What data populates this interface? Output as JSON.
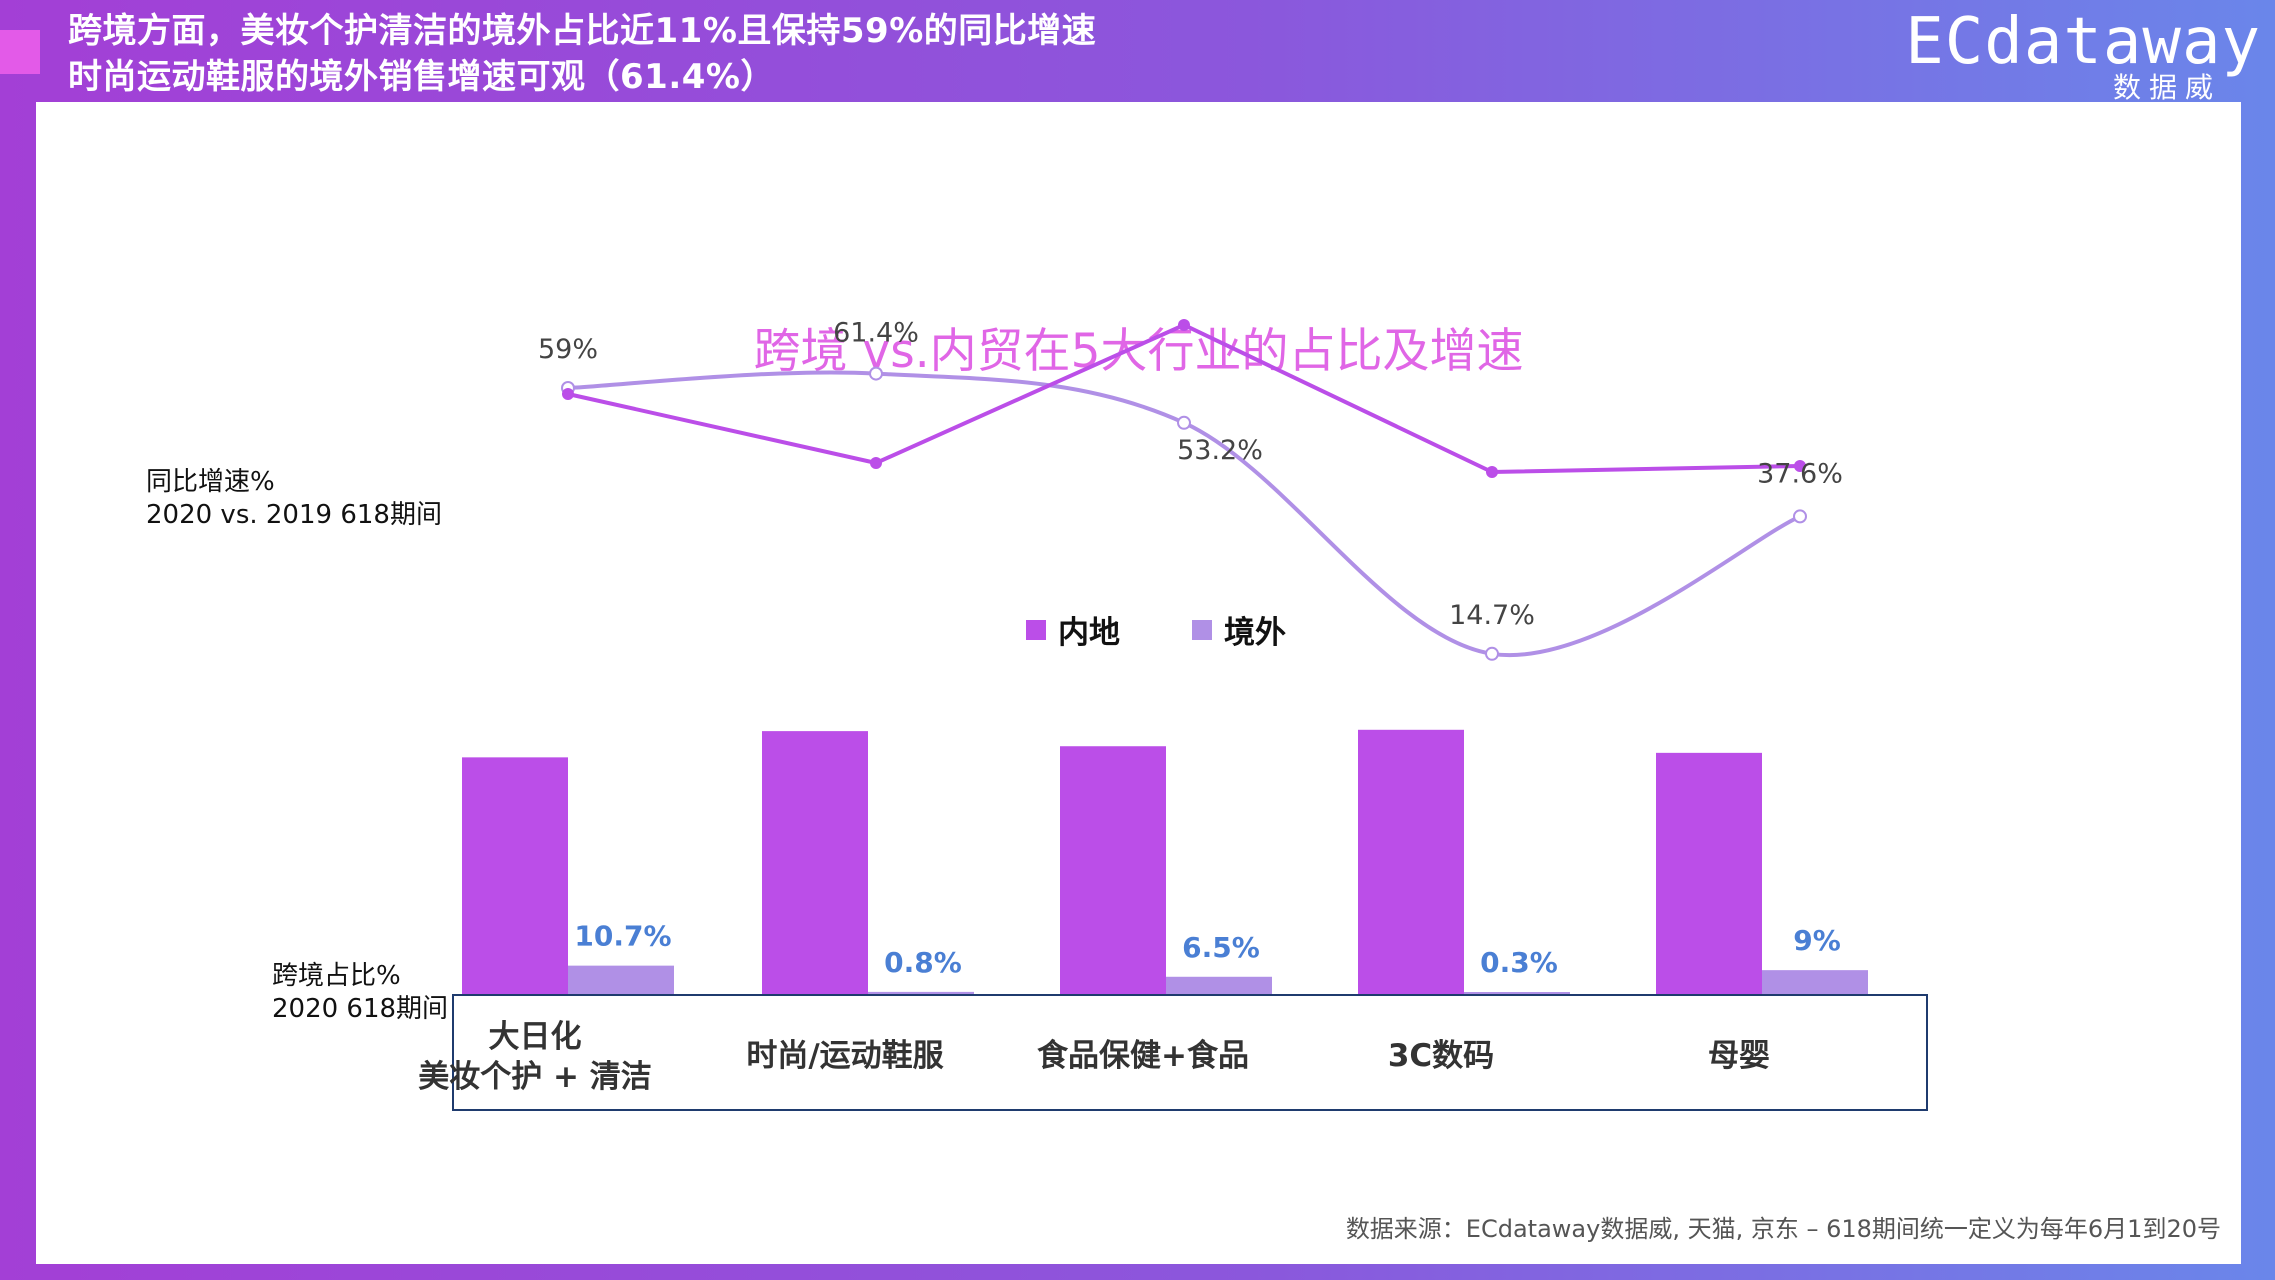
{
  "header": {
    "title_line1": "跨境方面，美妆个护清洁的境外占比近11%且保持59%的同比增速",
    "title_line2": "时尚运动鞋服的境外销售增速可观（61.4%）"
  },
  "logo": {
    "word": "ECdataway",
    "sub": "数据威"
  },
  "labels": {
    "growth_title": "同比增速%",
    "growth_sub": "2020 vs. 2019 618期间",
    "share_title": "跨境占比%",
    "share_sub": "2020 618期间"
  },
  "source": "数据来源：ECdataway数据威, 天猫, 京东 – 618期间统一定义为每年6月1到20号",
  "colors": {
    "domestic": "#bb4ee8",
    "overseas": "#b090e6",
    "label_blue": "#4a7fd4",
    "title_pink": "#e066e6"
  },
  "chart_data": {
    "type": "bar+line",
    "title": "跨境 vs.内贸在5大行业的占比及增速",
    "legend": [
      {
        "name": "内地"
      },
      {
        "name": "境外"
      }
    ],
    "categories": [
      {
        "line1": "大日化",
        "line2": "美妆个护 + 清洁"
      },
      {
        "line1": "时尚/运动鞋服",
        "line2": ""
      },
      {
        "line1": "食品保健+食品",
        "line2": ""
      },
      {
        "line1": "3C数码",
        "line2": ""
      },
      {
        "line1": "母婴",
        "line2": ""
      }
    ],
    "share_series": [
      {
        "name": "内地",
        "values": [
          89.3,
          99.2,
          93.5,
          99.7,
          91.0
        ]
      },
      {
        "name": "境外",
        "values": [
          10.7,
          0.8,
          6.5,
          0.3,
          9.0
        ]
      }
    ],
    "share_labels": [
      "10.7%",
      "0.8%",
      "6.5%",
      "0.3%",
      "9%"
    ],
    "growth_series": [
      {
        "name": "内地",
        "values": [
          58.0,
          46.5,
          69.5,
          45.0,
          46.0
        ]
      },
      {
        "name": "境外",
        "values": [
          59.0,
          61.4,
          53.2,
          14.7,
          37.6
        ]
      }
    ],
    "growth_labels": [
      "59%",
      "61.4%",
      "53.2%",
      "14.7%",
      "37.6%"
    ]
  }
}
